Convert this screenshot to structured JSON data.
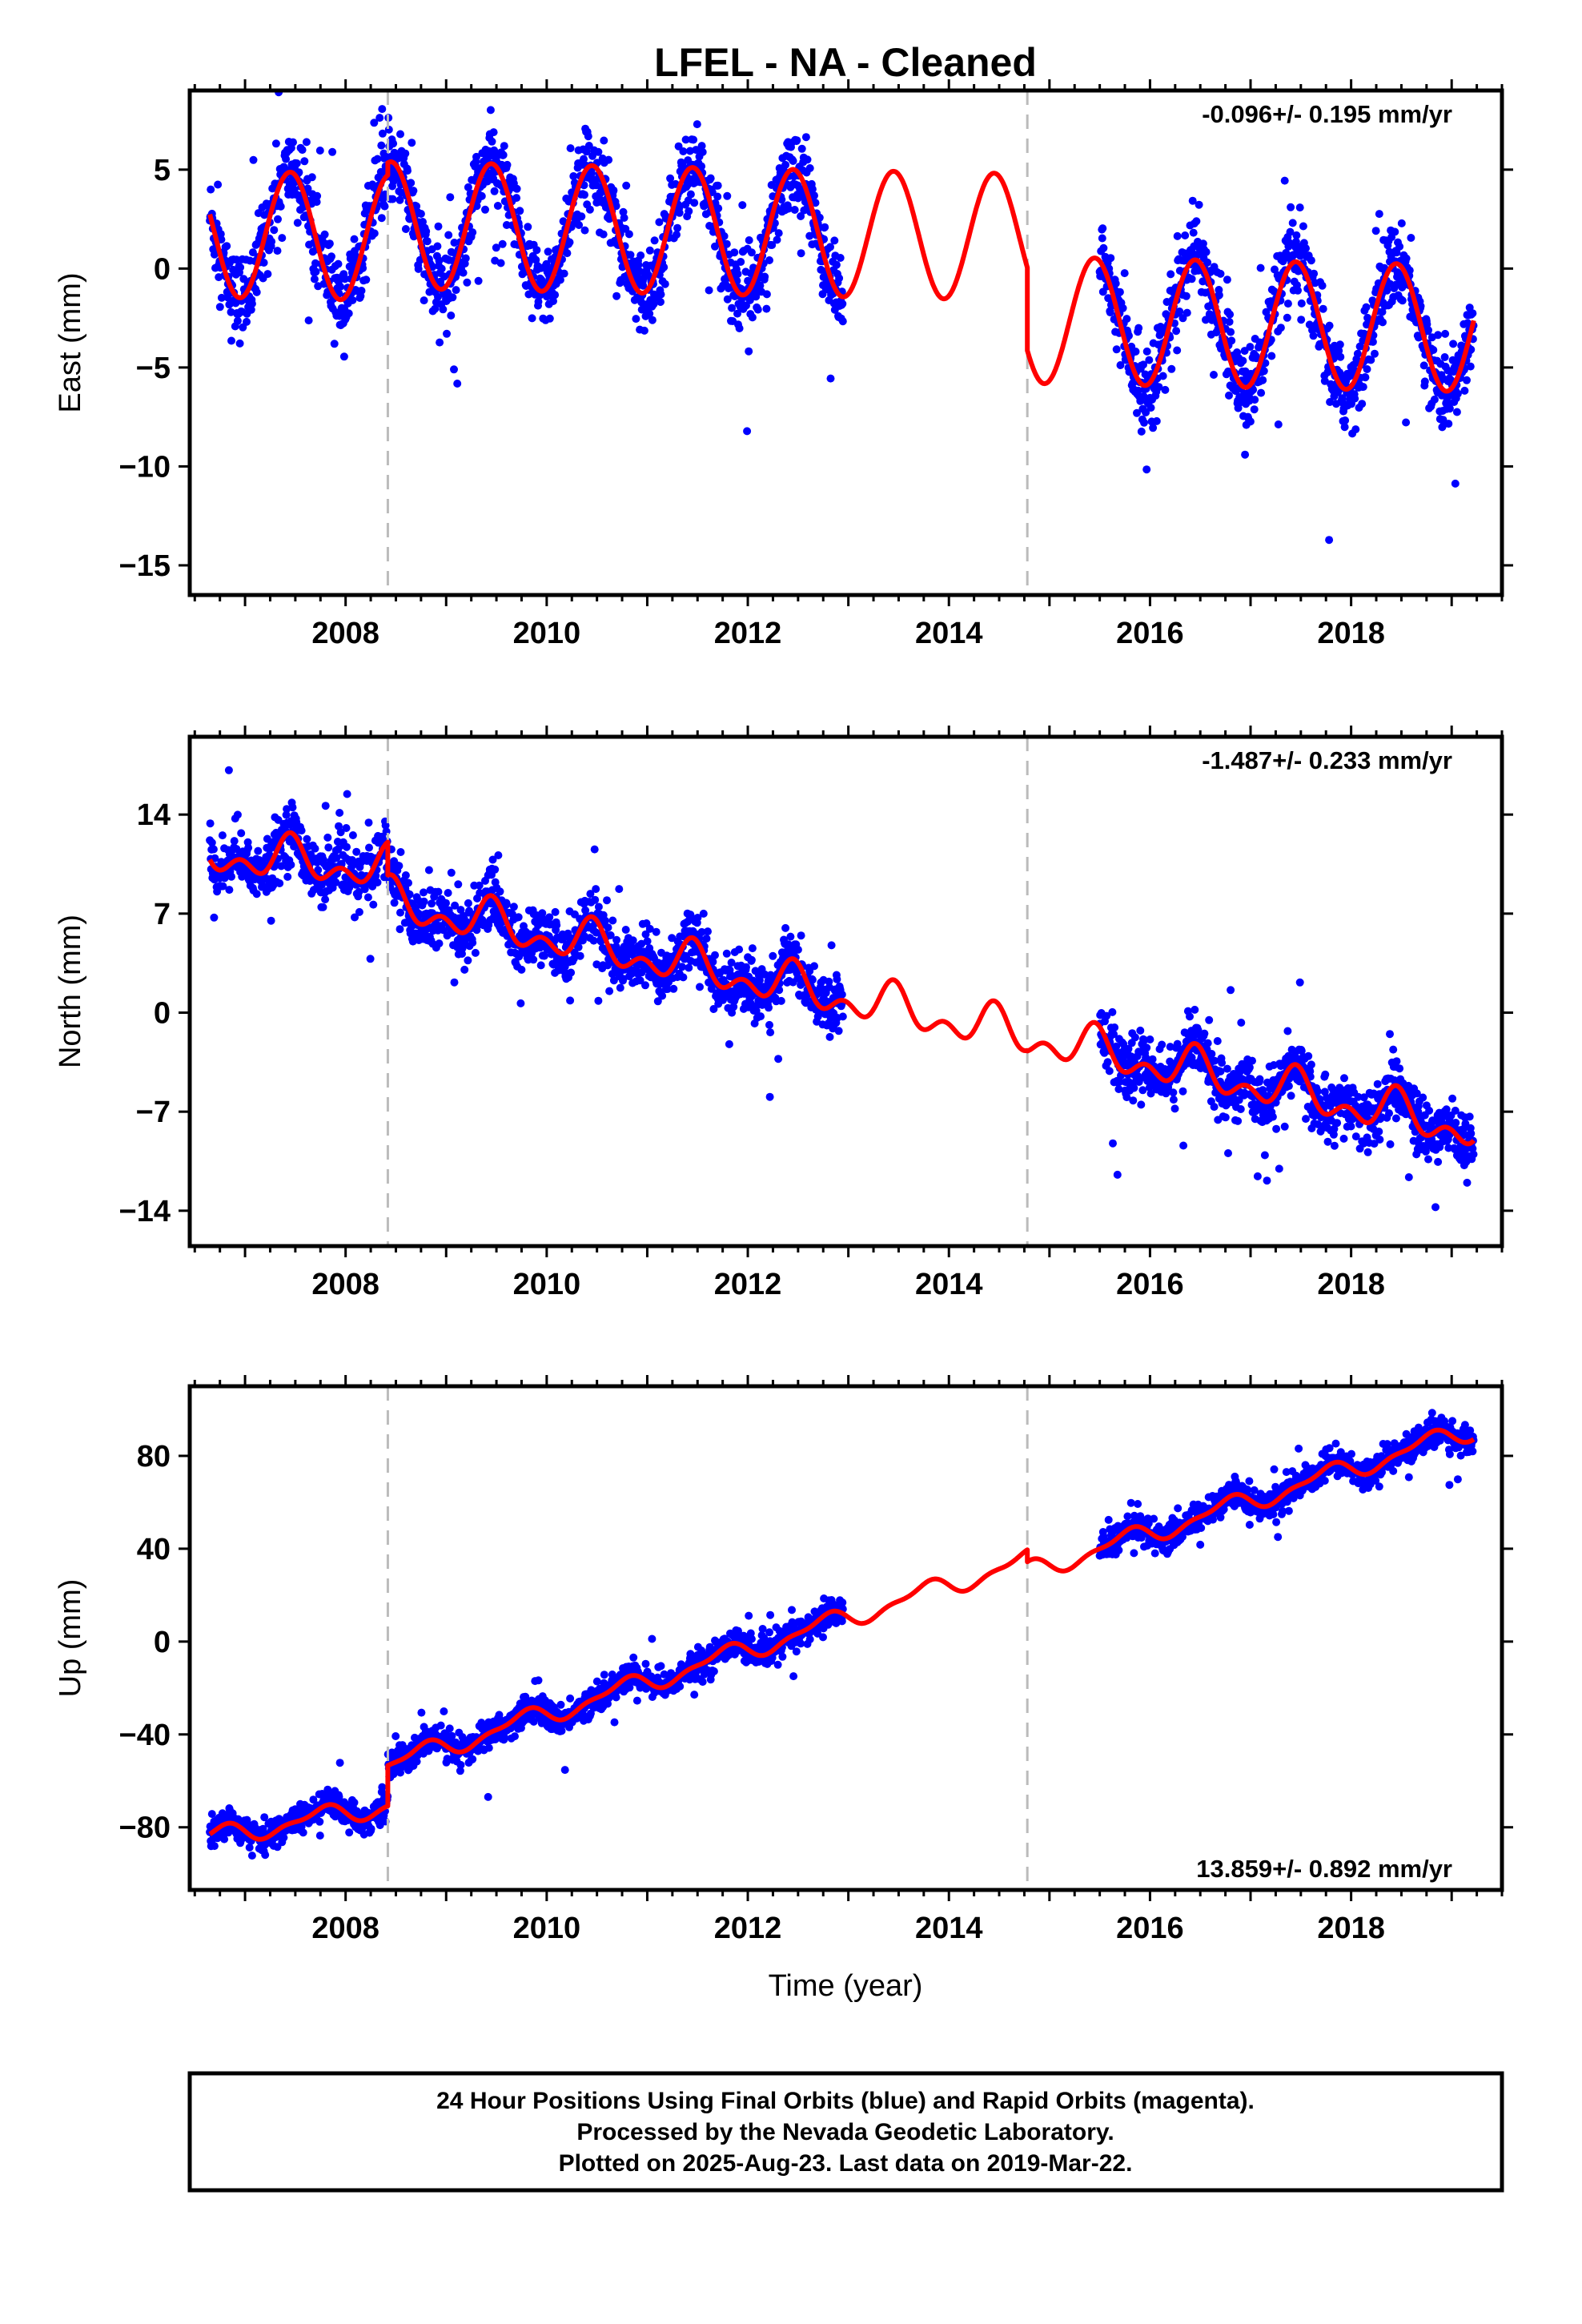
{
  "title": "LFEL  - NA - Cleaned",
  "xlabel": "Time (year)",
  "footer": [
    "24 Hour Positions Using Final Orbits (blue) and Rapid Orbits (magenta).",
    "Processed by the Nevada Geodetic Laboratory.",
    "Plotted on 2025-Aug-23. Last data on 2019-Mar-22."
  ],
  "colors": {
    "observations": "#0000ff",
    "model": "#ff0000",
    "equipment_change": "#bbbbbb"
  },
  "chart_data": [
    {
      "type": "scatter",
      "ylabel": "East (mm)",
      "rate": "-0.096+/- 0.195 mm/yr",
      "xlim": [
        2006.45,
        2019.5
      ],
      "ylim": [
        -16.5,
        9
      ],
      "xticks": [
        "2008",
        "2010",
        "2012",
        "2014",
        "2016",
        "2018"
      ],
      "yticks": [
        "5",
        "0",
        "−5",
        "−10",
        "−15"
      ],
      "ytick_values": [
        5,
        0,
        -5,
        -10,
        -15
      ],
      "breaks": [
        2008.42,
        2014.78
      ],
      "data_segments": [
        [
          2006.65,
          2012.95
        ],
        [
          2015.5,
          2019.22
        ]
      ],
      "model": {
        "segments": [
          {
            "x": [
              2006.65,
              2008.42
            ],
            "start": 1.75,
            "rate": -0.096
          },
          {
            "x": [
              2008.42,
              2014.78
            ],
            "start": 2.2,
            "rate": -0.096
          },
          {
            "x": [
              2014.78,
              2019.22
            ],
            "start": -2.6,
            "rate": -0.096
          }
        ],
        "seasonal_amplitude": 3.2,
        "seasonal_peak": 0.45,
        "seasonal_shape": "annual"
      },
      "scatter_sd": 1.7,
      "series": [
        {
          "name": "",
          "values": []
        }
      ]
    },
    {
      "type": "scatter",
      "ylabel": "North (mm)",
      "rate": "-1.487+/- 0.233 mm/yr",
      "xlim": [
        2006.45,
        2019.5
      ],
      "ylim": [
        -16.5,
        19.5
      ],
      "xticks": [
        "2008",
        "2010",
        "2012",
        "2014",
        "2016",
        "2018"
      ],
      "yticks": [
        "14",
        "7",
        "0",
        "−7",
        "−14"
      ],
      "ytick_values": [
        14,
        7,
        0,
        -7,
        -14
      ],
      "breaks": [
        2008.42,
        2014.78
      ],
      "data_segments": [
        [
          2006.65,
          2012.95
        ],
        [
          2015.5,
          2019.22
        ]
      ],
      "model": {
        "segments": [
          {
            "x": [
              2006.65,
              2008.42
            ],
            "start": 11.2,
            "rate": -0.6
          },
          {
            "x": [
              2008.42,
              2014.78
            ],
            "start": 7.8,
            "rate": -1.487
          },
          {
            "x": [
              2014.78,
              2019.22
            ],
            "start": -1.7,
            "rate": -1.487
          }
        ],
        "seasonal_amplitude": 2.0,
        "seasonal_peak": 0.45,
        "seasonal_shape": "peaked"
      },
      "scatter_sd": 1.7,
      "series": [
        {
          "name": "",
          "values": []
        }
      ]
    },
    {
      "type": "scatter",
      "ylabel": "Up (mm)",
      "rate": "13.859+/- 0.892 mm/yr",
      "xlim": [
        2006.45,
        2019.5
      ],
      "ylim": [
        -107,
        110
      ],
      "xticks": [
        "2008",
        "2010",
        "2012",
        "2014",
        "2016",
        "2018"
      ],
      "yticks": [
        "80",
        "40",
        "0",
        "−40",
        "−80"
      ],
      "ytick_values": [
        80,
        40,
        0,
        -40,
        -80
      ],
      "breaks": [
        2008.42,
        2014.78
      ],
      "data_segments": [
        [
          2006.65,
          2012.95
        ],
        [
          2015.5,
          2019.22
        ]
      ],
      "model": {
        "segments": [
          {
            "x": [
              2006.65,
              2008.42
            ],
            "start": -84.5,
            "rate": 8.0
          },
          {
            "x": [
              2008.42,
              2014.78
            ],
            "start": -53.0,
            "rate": 13.859
          },
          {
            "x": [
              2014.78,
              2019.22
            ],
            "start": 30.0,
            "rate": 13.859
          }
        ],
        "seasonal_amplitude": 5.5,
        "seasonal_peak": 0.75,
        "seasonal_shape": "stepped"
      },
      "scatter_sd": 5.0,
      "series": [
        {
          "name": "",
          "values": []
        }
      ]
    }
  ]
}
